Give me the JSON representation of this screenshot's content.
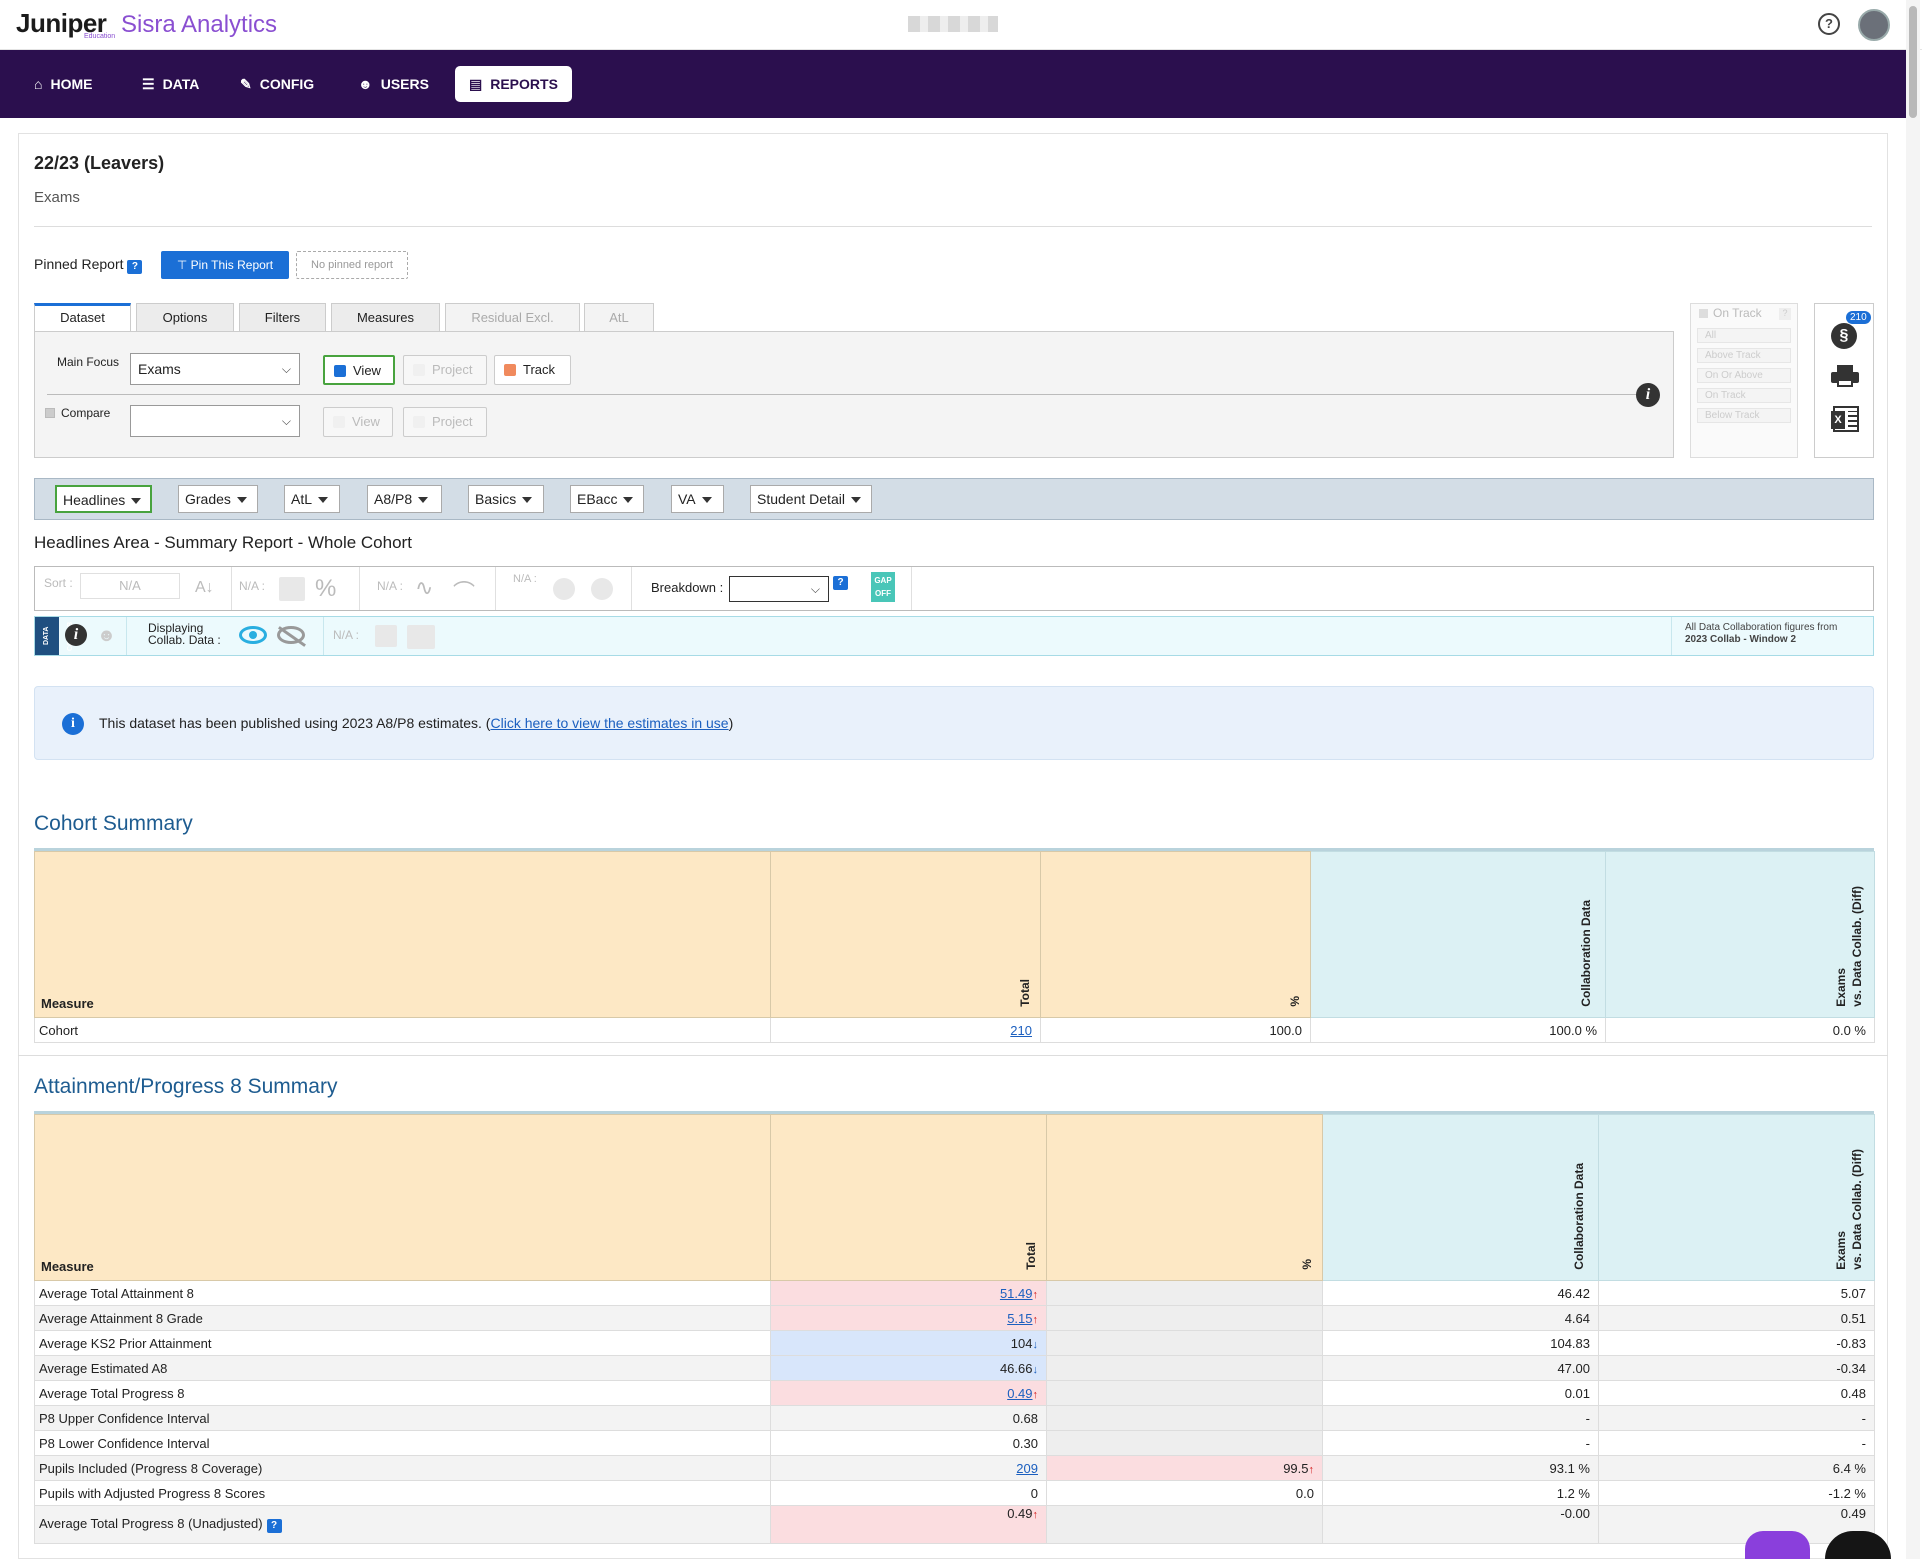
{
  "app": {
    "brand": "Juniper",
    "brand_sub": "Sisra Analytics",
    "brand_tag": "Education"
  },
  "nav": [
    {
      "label": "HOME",
      "icon": "home-icon",
      "glyph": "⌂"
    },
    {
      "label": "DATA",
      "icon": "database-icon",
      "glyph": "☰"
    },
    {
      "label": "CONFIG",
      "icon": "wrench-icon",
      "glyph": "✎"
    },
    {
      "label": "USERS",
      "icon": "users-icon",
      "glyph": "☻"
    },
    {
      "label": "REPORTS",
      "icon": "chart-icon",
      "glyph": "▤"
    }
  ],
  "page": {
    "title": "22/23 (Leavers)",
    "subtitle": "Exams"
  },
  "pinned": {
    "label": "Pinned Report",
    "help": "?",
    "button": "Pin This Report",
    "none": "No pinned report"
  },
  "tabs": [
    "Dataset",
    "Options",
    "Filters",
    "Measures",
    "Residual Excl.",
    "AtL"
  ],
  "dataset": {
    "main_focus_label": "Main Focus",
    "main_focus_value": "Exams",
    "view": "View",
    "project": "Project",
    "track": "Track",
    "compare_label": "Compare",
    "compare_value": "",
    "view2": "View",
    "project2": "Project",
    "info": "i"
  },
  "on_track": {
    "title": "On Track",
    "items": [
      "All",
      "Above Track",
      "On Or Above",
      "On Track",
      "Below Track"
    ]
  },
  "tools": {
    "badge": "210"
  },
  "report_menu": [
    "Headlines",
    "Grades",
    "AtL",
    "A8/P8",
    "Basics",
    "EBacc",
    "VA",
    "Student Detail"
  ],
  "area_title": "Headlines Area - Summary Report - Whole Cohort",
  "toolbar": {
    "sort_label": "Sort :",
    "sort_value": "N/A",
    "na": "N/A :",
    "breakdown_label": "Breakdown :",
    "breakdown_help": "?",
    "gap": "GAP",
    "gap_state": "OFF"
  },
  "collab": {
    "tag": "DATA COLLAB",
    "displaying": "Displaying",
    "collab_data": "Collab. Data :",
    "na": "N/A :",
    "note_line1": "All Data Collaboration figures from",
    "note_line2": "2023 Collab - Window 2"
  },
  "alert": {
    "text": "This dataset has been published using 2023 A8/P8 estimates. (",
    "link": "Click here to view the estimates in use",
    "close": ")"
  },
  "cohort": {
    "title": "Cohort Summary",
    "headers": {
      "measure": "Measure",
      "total": "Total",
      "pct": "%",
      "collab": "Collaboration Data",
      "diff_line1": "Exams",
      "diff_line2": "vs. Data Collab. (Diff)"
    },
    "rows": [
      {
        "measure": "Cohort",
        "total": "210",
        "pct": "100.0",
        "collab": "100.0 %",
        "diff": "0.0 %"
      }
    ]
  },
  "a8p8": {
    "title": "Attainment/Progress 8 Summary",
    "headers": {
      "measure": "Measure",
      "total": "Total",
      "pct": "%",
      "collab": "Collaboration Data",
      "diff_line1": "Exams",
      "diff_line2": "vs. Data Collab. (Diff)"
    },
    "rows": [
      {
        "measure": "Average Total Attainment 8",
        "total": "51.49",
        "arrow": "↑",
        "link": true,
        "tone": "pink",
        "pct": "",
        "collab": "46.42",
        "diff": "5.07"
      },
      {
        "measure": "Average Attainment 8 Grade",
        "total": "5.15",
        "arrow": "↑",
        "link": true,
        "tone": "pink",
        "pct": "",
        "collab": "4.64",
        "diff": "0.51"
      },
      {
        "measure": "Average KS2 Prior Attainment",
        "total": "104",
        "arrow": "↓",
        "link": false,
        "tone": "blue",
        "pct": "",
        "collab": "104.83",
        "diff": "-0.83"
      },
      {
        "measure": "Average Estimated A8",
        "total": "46.66",
        "arrow": "↓",
        "link": false,
        "tone": "blue",
        "pct": "",
        "collab": "47.00",
        "diff": "-0.34"
      },
      {
        "measure": "Average Total Progress 8",
        "total": "0.49",
        "arrow": "↑",
        "link": true,
        "tone": "pink",
        "pct": "",
        "collab": "0.01",
        "diff": "0.48"
      },
      {
        "measure": "P8 Upper Confidence Interval",
        "total": "0.68",
        "arrow": "",
        "link": false,
        "tone": "",
        "pct": "",
        "collab": "-",
        "diff": "-"
      },
      {
        "measure": "P8 Lower Confidence Interval",
        "total": "0.30",
        "arrow": "",
        "link": false,
        "tone": "",
        "pct": "",
        "collab": "-",
        "diff": "-"
      },
      {
        "measure": "Pupils Included (Progress 8 Coverage)",
        "total": "209",
        "arrow": "",
        "link": true,
        "tone": "",
        "pct": "99.5",
        "pct_arrow": "↑",
        "pct_tone": "pink",
        "collab": "93.1 %",
        "diff": "6.4 %"
      },
      {
        "measure": "Pupils with Adjusted Progress 8 Scores",
        "total": "0",
        "arrow": "",
        "link": false,
        "tone": "",
        "pct": "0.0",
        "collab": "1.2 %",
        "diff": "-1.2 %"
      },
      {
        "measure": "Average Total Progress 8 (Unadjusted)",
        "help": "?",
        "total": "0.49",
        "arrow": "↑",
        "link": false,
        "tone": "pink",
        "pct": "",
        "collab": "-0.00",
        "diff": "0.49"
      }
    ]
  },
  "colors": {
    "nav_bg": "#2b0f4e",
    "accent": "#1b6fd6",
    "brand_purple": "#8a4fd1",
    "header_orange": "#fde8c5",
    "header_teal": "#dcf1f4",
    "up_red": "#d42020"
  }
}
